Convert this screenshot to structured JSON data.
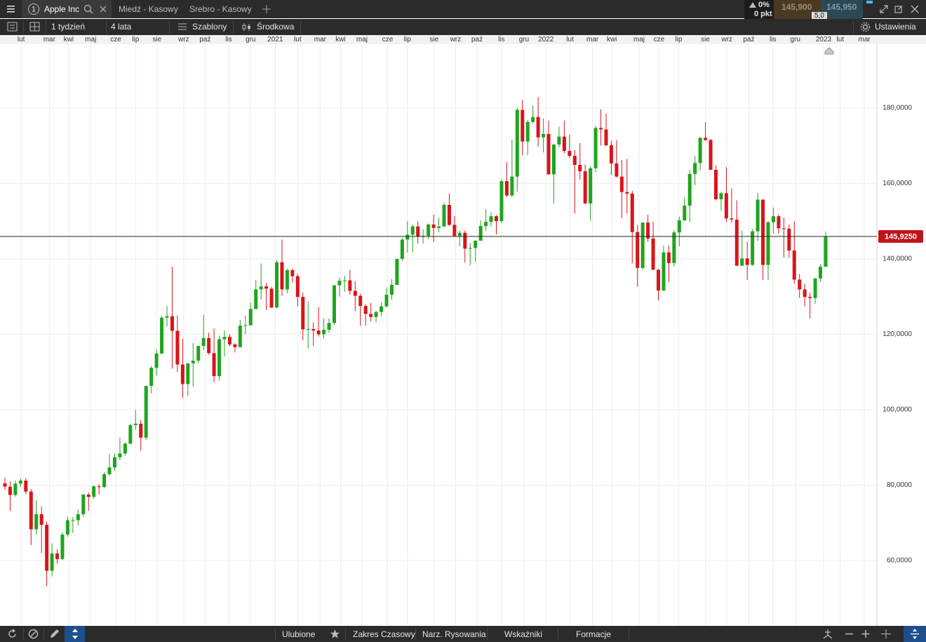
{
  "tabs": {
    "index": "1",
    "active": "Apple Inc",
    "others": [
      "Miedź - Kasowy",
      "Srebro - Kasowy"
    ]
  },
  "quote": {
    "change": "0%",
    "points": "0 pkt",
    "sell": "145,900",
    "buy": "145,950",
    "spread": "5,0"
  },
  "toolbar": {
    "interval": "1 tydzień",
    "range": "4 lata",
    "templates": "Szablony",
    "price_mode": "Środkowa",
    "settings": "Ustawienia"
  },
  "bottom_bar": {
    "items": [
      "Ulubione",
      "Zakres Czasowy",
      "Narz. Rysowania",
      "Wskaźniki",
      "Formacje"
    ]
  },
  "chart_data": {
    "type": "candlestick",
    "up_color": "#1fa51f",
    "down_color": "#d9141b",
    "grid": true,
    "xlim": [
      -0.94,
      166.8
    ],
    "xticks": [
      {
        "value": 3.1,
        "label": "lut"
      },
      {
        "value": 8.5,
        "label": "mar"
      },
      {
        "value": 12.2,
        "label": "kwi"
      },
      {
        "value": 16.4,
        "label": "maj"
      },
      {
        "value": 21.2,
        "label": "cze"
      },
      {
        "value": 25,
        "label": "lip"
      },
      {
        "value": 29.1,
        "label": "sie"
      },
      {
        "value": 34.2,
        "label": "wrz"
      },
      {
        "value": 38.3,
        "label": "paź"
      },
      {
        "value": 42.8,
        "label": "lis"
      },
      {
        "value": 47,
        "label": "gru"
      },
      {
        "value": 51.7,
        "label": "2021"
      },
      {
        "value": 56,
        "label": "lut"
      },
      {
        "value": 60.3,
        "label": "mar"
      },
      {
        "value": 64.2,
        "label": "kwi"
      },
      {
        "value": 68.3,
        "label": "maj"
      },
      {
        "value": 73.2,
        "label": "cze"
      },
      {
        "value": 77,
        "label": "lip"
      },
      {
        "value": 82.1,
        "label": "sie"
      },
      {
        "value": 86.2,
        "label": "wrz"
      },
      {
        "value": 90.3,
        "label": "paź"
      },
      {
        "value": 95,
        "label": "lis"
      },
      {
        "value": 99.3,
        "label": "gru"
      },
      {
        "value": 103.5,
        "label": "2022"
      },
      {
        "value": 108.1,
        "label": "lut"
      },
      {
        "value": 112.4,
        "label": "mar"
      },
      {
        "value": 116.1,
        "label": "kwi"
      },
      {
        "value": 121.3,
        "label": "maj"
      },
      {
        "value": 125.1,
        "label": "cze"
      },
      {
        "value": 128.9,
        "label": "lip"
      },
      {
        "value": 134,
        "label": "sie"
      },
      {
        "value": 138.1,
        "label": "wrz"
      },
      {
        "value": 142.3,
        "label": "paź"
      },
      {
        "value": 146.9,
        "label": "lis"
      },
      {
        "value": 151.2,
        "label": "gru"
      },
      {
        "value": 156.6,
        "label": "2023"
      },
      {
        "value": 159.8,
        "label": "lut"
      },
      {
        "value": 164.4,
        "label": "mar"
      }
    ],
    "ylim": [
      42.7,
      196.9
    ],
    "yticks": [
      {
        "value": 60,
        "label": "60,0000"
      },
      {
        "value": 80,
        "label": "80,0000"
      },
      {
        "value": 100,
        "label": "100,0000"
      },
      {
        "value": 120,
        "label": "120,0000"
      },
      {
        "value": 140,
        "label": "140,0000"
      },
      {
        "value": 160,
        "label": "160,0000"
      },
      {
        "value": 180,
        "label": "180,0000"
      }
    ],
    "price_line": {
      "value": 145.925,
      "label": "145,9250",
      "color": "#c0141b"
    },
    "candles": [
      [
        80.5,
        82.0,
        78.8,
        79.6
      ],
      [
        79.6,
        81.0,
        73.2,
        77.4
      ],
      [
        77.4,
        81.2,
        76.9,
        80.4
      ],
      [
        80.4,
        81.8,
        79.5,
        81.2
      ],
      [
        81.2,
        81.9,
        77.6,
        78.3
      ],
      [
        78.3,
        79.0,
        64.1,
        68.3
      ],
      [
        68.3,
        76.0,
        67.0,
        72.3
      ],
      [
        72.3,
        74.4,
        62.0,
        69.5
      ],
      [
        69.5,
        70.3,
        53.2,
        57.3
      ],
      [
        57.3,
        64.6,
        55.8,
        61.9
      ],
      [
        61.9,
        63.0,
        59.2,
        60.4
      ],
      [
        60.4,
        67.5,
        60.1,
        66.9
      ],
      [
        66.9,
        71.6,
        66.4,
        70.7
      ],
      [
        70.7,
        71.5,
        67.3,
        70.7
      ],
      [
        70.7,
        73.6,
        69.3,
        72.3
      ],
      [
        72.3,
        77.6,
        71.6,
        77.5
      ],
      [
        77.5,
        78.0,
        73.2,
        76.9
      ],
      [
        76.9,
        79.9,
        76.4,
        79.7
      ],
      [
        79.7,
        80.3,
        77.6,
        79.5
      ],
      [
        79.5,
        83.4,
        79.3,
        82.9
      ],
      [
        82.9,
        88.3,
        82.6,
        84.7
      ],
      [
        84.7,
        88.4,
        83.9,
        87.4
      ],
      [
        87.4,
        92.6,
        86.6,
        88.4
      ],
      [
        88.4,
        91.4,
        87.8,
        91.0
      ],
      [
        91.0,
        96.3,
        90.9,
        95.9
      ],
      [
        95.9,
        99.9,
        94.7,
        96.3
      ],
      [
        96.3,
        97.3,
        89.1,
        92.6
      ],
      [
        92.6,
        106.4,
        92.0,
        106.3
      ],
      [
        106.3,
        111.6,
        104.3,
        111.1
      ],
      [
        111.1,
        116.0,
        109.1,
        114.9
      ],
      [
        114.9,
        124.9,
        114.7,
        124.4
      ],
      [
        124.4,
        127.5,
        122.1,
        124.8
      ],
      [
        124.8,
        137.9,
        110.9,
        120.9
      ],
      [
        120.9,
        125.0,
        110.0,
        112.0
      ],
      [
        112.0,
        118.8,
        103.1,
        106.8
      ],
      [
        106.8,
        112.4,
        103.6,
        112.3
      ],
      [
        112.3,
        117.7,
        106.1,
        113.0
      ],
      [
        113.0,
        117.0,
        112.3,
        116.9
      ],
      [
        116.9,
        125.2,
        115.7,
        119.0
      ],
      [
        119.0,
        120.4,
        114.6,
        115.0
      ],
      [
        115.0,
        121.5,
        107.3,
        108.9
      ],
      [
        108.9,
        119.6,
        107.7,
        118.7
      ],
      [
        118.7,
        121.0,
        114.1,
        119.3
      ],
      [
        119.3,
        120.0,
        116.8,
        117.3
      ],
      [
        117.3,
        117.6,
        115.2,
        116.6
      ],
      [
        116.6,
        123.8,
        116.5,
        122.3
      ],
      [
        122.3,
        125.0,
        120.0,
        122.4
      ],
      [
        122.4,
        128.4,
        122.3,
        126.7
      ],
      [
        126.7,
        134.4,
        126.7,
        131.9
      ],
      [
        131.9,
        138.8,
        129.2,
        132.7
      ],
      [
        132.7,
        133.6,
        126.4,
        132.1
      ],
      [
        132.1,
        132.6,
        126.9,
        127.1
      ],
      [
        127.1,
        139.7,
        126.9,
        139.1
      ],
      [
        139.1,
        145.1,
        130.2,
        131.9
      ],
      [
        131.9,
        137.4,
        130.9,
        137.0
      ],
      [
        137.0,
        137.4,
        133.7,
        135.4
      ],
      [
        135.4,
        136.0,
        127.4,
        129.9
      ],
      [
        129.9,
        131.0,
        118.4,
        121.3
      ],
      [
        121.3,
        128.7,
        116.2,
        121.4
      ],
      [
        121.4,
        123.2,
        116.9,
        121.0
      ],
      [
        121.0,
        127.2,
        119.4,
        120.0
      ],
      [
        120.0,
        124.2,
        118.9,
        121.2
      ],
      [
        121.2,
        124.2,
        120.4,
        123.0
      ],
      [
        123.0,
        133.0,
        122.5,
        133.0
      ],
      [
        133.0,
        135.0,
        130.0,
        134.2
      ],
      [
        134.2,
        135.5,
        131.3,
        134.3
      ],
      [
        134.3,
        137.1,
        130.5,
        131.5
      ],
      [
        131.5,
        134.1,
        126.1,
        130.2
      ],
      [
        130.2,
        130.8,
        122.3,
        127.5
      ],
      [
        127.5,
        128.0,
        122.3,
        125.4
      ],
      [
        125.4,
        128.3,
        123.4,
        124.6
      ],
      [
        124.6,
        126.2,
        123.1,
        125.9
      ],
      [
        125.9,
        128.5,
        124.8,
        127.4
      ],
      [
        127.4,
        132.4,
        127.1,
        130.5
      ],
      [
        130.5,
        134.6,
        129.2,
        133.1
      ],
      [
        133.1,
        140.0,
        133.0,
        140.0
      ],
      [
        140.0,
        145.6,
        139.4,
        145.1
      ],
      [
        145.1,
        150.0,
        141.7,
        146.4
      ],
      [
        146.4,
        149.0,
        141.7,
        148.6
      ],
      [
        148.6,
        150.0,
        144.1,
        145.9
      ],
      [
        145.9,
        147.8,
        144.0,
        146.1
      ],
      [
        146.1,
        149.4,
        145.3,
        149.1
      ],
      [
        149.1,
        151.7,
        144.5,
        148.2
      ],
      [
        148.2,
        150.9,
        147.0,
        148.6
      ],
      [
        148.6,
        154.9,
        148.4,
        154.3
      ],
      [
        154.3,
        157.3,
        148.7,
        149.0
      ],
      [
        149.0,
        151.4,
        145.8,
        146.1
      ],
      [
        146.1,
        147.5,
        143.3,
        146.9
      ],
      [
        146.9,
        147.5,
        139.0,
        142.7
      ],
      [
        142.7,
        144.2,
        138.3,
        142.9
      ],
      [
        142.9,
        144.9,
        139.2,
        144.8
      ],
      [
        144.8,
        150.2,
        144.8,
        148.7
      ],
      [
        148.7,
        153.2,
        147.5,
        149.8
      ],
      [
        149.8,
        152.4,
        148.6,
        151.3
      ],
      [
        151.3,
        151.6,
        146.5,
        150.0
      ],
      [
        150.0,
        161.0,
        149.4,
        160.6
      ],
      [
        160.6,
        165.7,
        156.4,
        156.8
      ],
      [
        156.8,
        171.6,
        156.4,
        161.8
      ],
      [
        161.8,
        180.0,
        157.8,
        179.5
      ],
      [
        179.5,
        182.1,
        167.5,
        171.1
      ],
      [
        171.1,
        176.8,
        167.5,
        176.3
      ],
      [
        176.3,
        180.6,
        175.8,
        177.6
      ],
      [
        177.6,
        182.9,
        169.7,
        172.2
      ],
      [
        172.2,
        177.2,
        168.2,
        173.1
      ],
      [
        173.1,
        176.6,
        162.3,
        162.4
      ],
      [
        162.4,
        170.4,
        154.7,
        170.3
      ],
      [
        170.3,
        175.0,
        169.5,
        172.4
      ],
      [
        172.4,
        176.6,
        168.0,
        168.6
      ],
      [
        168.6,
        172.9,
        166.8,
        167.3
      ],
      [
        167.3,
        168.9,
        152.0,
        164.9
      ],
      [
        164.9,
        170.7,
        161.0,
        163.2
      ],
      [
        163.2,
        165.0,
        154.5,
        154.7
      ],
      [
        154.7,
        164.5,
        150.1,
        164.0
      ],
      [
        164.0,
        175.3,
        163.0,
        174.7
      ],
      [
        174.7,
        179.6,
        170.0,
        174.3
      ],
      [
        174.3,
        178.5,
        169.9,
        170.1
      ],
      [
        170.1,
        171.3,
        162.2,
        165.3
      ],
      [
        165.3,
        171.5,
        161.5,
        161.8
      ],
      [
        161.8,
        166.2,
        150.8,
        157.7
      ],
      [
        157.7,
        166.5,
        152.0,
        157.3
      ],
      [
        157.3,
        158.0,
        138.8,
        147.1
      ],
      [
        147.1,
        149.0,
        132.6,
        137.6
      ],
      [
        137.6,
        149.7,
        137.1,
        149.6
      ],
      [
        149.6,
        151.7,
        144.5,
        145.4
      ],
      [
        145.4,
        149.9,
        137.1,
        137.1
      ],
      [
        137.1,
        137.3,
        129.0,
        131.6
      ],
      [
        131.6,
        143.5,
        131.5,
        141.7
      ],
      [
        141.7,
        143.5,
        133.8,
        138.9
      ],
      [
        138.9,
        147.6,
        138.0,
        147.0
      ],
      [
        147.0,
        151.2,
        143.3,
        150.2
      ],
      [
        150.2,
        156.3,
        150.0,
        154.1
      ],
      [
        154.1,
        163.6,
        149.7,
        162.5
      ],
      [
        162.5,
        167.2,
        159.5,
        165.4
      ],
      [
        165.4,
        172.2,
        163.5,
        172.1
      ],
      [
        172.1,
        176.2,
        171.3,
        171.5
      ],
      [
        171.5,
        171.8,
        163.6,
        163.6
      ],
      [
        163.6,
        164.8,
        155.5,
        155.8
      ],
      [
        155.8,
        157.8,
        152.7,
        157.4
      ],
      [
        157.4,
        164.3,
        149.7,
        150.7
      ],
      [
        150.7,
        158.7,
        149.6,
        150.4
      ],
      [
        150.4,
        155.5,
        138.0,
        138.2
      ],
      [
        138.2,
        147.5,
        138.0,
        140.1
      ],
      [
        140.1,
        144.5,
        134.4,
        138.4
      ],
      [
        138.4,
        147.9,
        138.2,
        147.3
      ],
      [
        147.3,
        157.5,
        144.7,
        155.7
      ],
      [
        155.7,
        155.8,
        134.4,
        138.4
      ],
      [
        138.4,
        150.0,
        134.4,
        149.7
      ],
      [
        149.7,
        153.6,
        146.7,
        151.3
      ],
      [
        151.3,
        151.8,
        146.7,
        148.1
      ],
      [
        148.1,
        150.9,
        140.4,
        148.0
      ],
      [
        148.0,
        149.1,
        140.3,
        142.2
      ],
      [
        142.2,
        149.9,
        133.4,
        134.5
      ],
      [
        134.5,
        136.0,
        129.6,
        131.9
      ],
      [
        131.9,
        133.4,
        127.4,
        129.9
      ],
      [
        129.9,
        131.0,
        124.2,
        129.6
      ],
      [
        129.6,
        134.9,
        128.1,
        134.8
      ],
      [
        134.8,
        138.6,
        133.9,
        137.9
      ],
      [
        137.9,
        147.2,
        137.9,
        145.925
      ]
    ]
  }
}
